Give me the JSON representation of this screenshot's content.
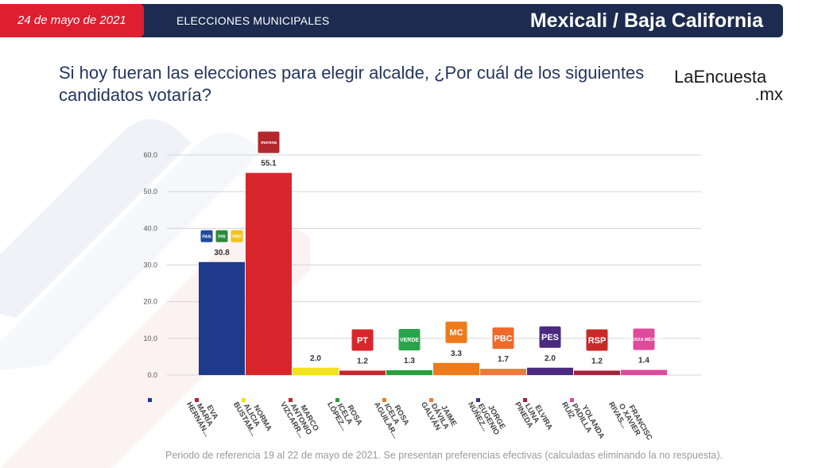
{
  "header": {
    "date": "24 de mayo de 2021",
    "section": "ELECCIONES MUNICIPALES",
    "place": "Mexicali / Baja California"
  },
  "question": {
    "part1": "Si hoy fueran las elecciones para elegir alcalde,",
    "part2": "¿Por cuál de los siguientes candidatos votaría?"
  },
  "brand": {
    "line1": "LaEncuesta",
    "line2": ".mx"
  },
  "footnote": "Periodo de referencia 19 al 22 de mayo de 2021. Se presentan preferencias efectivas (calculadas eliminando la no respuesta).",
  "colors": {
    "header_bg": "#1c2b4f",
    "date_bg": "#dd1f30",
    "question_text": "#24355e"
  },
  "chart_data": {
    "type": "bar",
    "ylim": [
      0,
      60
    ],
    "yticks": [
      "0.0",
      "10.0",
      "20.0",
      "30.0",
      "40.0",
      "50.0",
      "60.0"
    ],
    "grid": true,
    "categories": [
      [
        "EVA",
        "MARÍA",
        "HERNÁN..."
      ],
      [
        "NORMA",
        "ALICIA",
        "BUSTAM..."
      ],
      [
        "MARCO",
        "ANTONIO",
        "VIZCARR..."
      ],
      [
        "ROSA",
        "ICELA",
        "LÓPEZ..."
      ],
      [
        "ROSA",
        "ICELA",
        "AGUILAR..."
      ],
      [
        "JAIME",
        "DÁVILA",
        "GALVÁN"
      ],
      [
        "JORGE",
        "EUGENIO",
        "NÚÑEZ..."
      ],
      [
        "ELVIRA",
        "LUNA",
        "PINEDA"
      ],
      [
        "YOLANDA",
        "PADILLA",
        "RUÍZ"
      ],
      [
        "FRANCISC",
        "O XAVIER",
        "RIVAS..."
      ]
    ],
    "values": [
      30.8,
      55.1,
      2.0,
      1.2,
      1.3,
      3.3,
      1.7,
      2.0,
      1.2,
      1.4
    ],
    "value_labels": [
      "30.8",
      "55.1",
      "2.0",
      "1.2",
      "1.3",
      "3.3",
      "1.7",
      "2.0",
      "1.2",
      "1.4"
    ],
    "colors": [
      "#1f3a8a",
      "#d9262c",
      "#f2e21a",
      "#c9252c",
      "#27a03a",
      "#ee7a1a",
      "#ec7a3a",
      "#4a2a80",
      "#a8203a",
      "#e04a9a"
    ],
    "legend_swatch_colors": [
      "#1f3a8a",
      "#b5252c",
      "#f2e21a",
      "#c9252c",
      "#27a03a",
      "#ee7a1a",
      "#ec7a3a",
      "#4a2a80",
      "#a8203a",
      "#e04a9a"
    ],
    "party_logos": [
      [
        {
          "text": "PAN",
          "color": "#1f4aa0",
          "label": "pan-logo"
        },
        {
          "text": "PRI",
          "color": "#2a8a3a",
          "label": "pri-logo"
        },
        {
          "text": "PRD",
          "color": "#f2c31a",
          "label": "prd-logo"
        }
      ],
      [
        {
          "text": "morena",
          "color": "#b3282d",
          "label": "morena-logo"
        }
      ],
      [],
      [
        {
          "text": "PT",
          "color": "#d9262c",
          "label": "pt-logo"
        }
      ],
      [
        {
          "text": "VERDE",
          "color": "#2aa44a",
          "label": "verde-logo"
        }
      ],
      [
        {
          "text": "MC",
          "color": "#ee7a1a",
          "label": "mc-logo"
        }
      ],
      [
        {
          "text": "PBC",
          "color": "#ef6a2a",
          "label": "pbc-logo"
        }
      ],
      [
        {
          "text": "PES",
          "color": "#4a2a80",
          "label": "pes-logo"
        }
      ],
      [
        {
          "text": "RSP",
          "color": "#c82a2a",
          "label": "rsp-logo"
        }
      ],
      [
        {
          "text": "FUERZA MÉXICO",
          "color": "#e04a9a",
          "label": "fuerza-mexico-logo"
        }
      ]
    ]
  }
}
